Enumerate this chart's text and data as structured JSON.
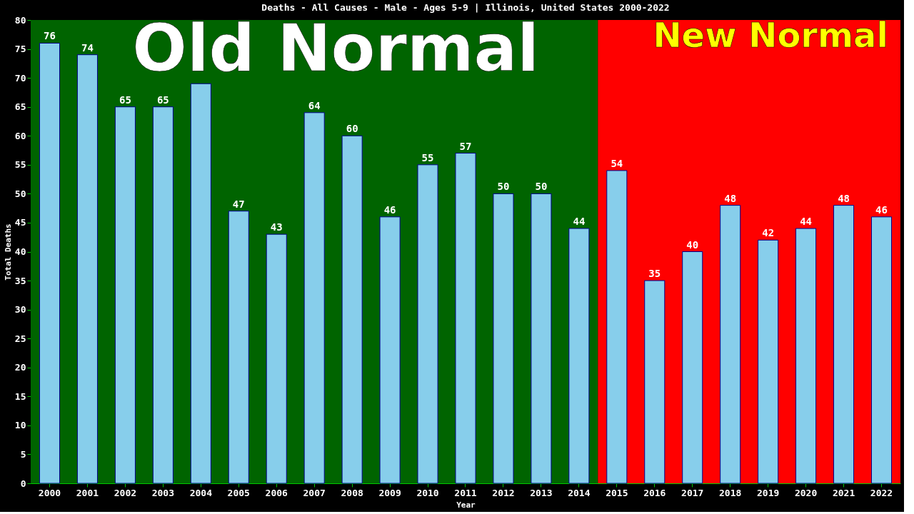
{
  "chart_data": {
    "type": "bar",
    "title": "Deaths - All Causes - Male - Ages 5-9 | Illinois, United States 2000-2022",
    "xlabel": "Year",
    "ylabel": "Total Deaths",
    "categories": [
      "2000",
      "2001",
      "2002",
      "2003",
      "2004",
      "2005",
      "2006",
      "2007",
      "2008",
      "2009",
      "2010",
      "2011",
      "2012",
      "2013",
      "2014",
      "2015",
      "2016",
      "2017",
      "2018",
      "2019",
      "2020",
      "2021",
      "2022"
    ],
    "values": [
      76,
      74,
      65,
      65,
      69,
      47,
      43,
      64,
      60,
      46,
      55,
      57,
      50,
      50,
      44,
      54,
      35,
      40,
      48,
      42,
      44,
      48,
      46
    ],
    "value_labels": [
      "76",
      "74",
      "65",
      "65",
      null,
      "47",
      "43",
      "64",
      "60",
      "46",
      "55",
      "57",
      "50",
      "50",
      "44",
      "54",
      "35",
      "40",
      "48",
      "42",
      "44",
      "48",
      "46"
    ],
    "color": "#87ceeb",
    "ylim": [
      0,
      80
    ],
    "yticks": [
      0,
      5,
      10,
      15,
      20,
      25,
      30,
      35,
      40,
      45,
      50,
      55,
      60,
      65,
      70,
      75,
      80
    ],
    "bands": [
      {
        "axis": "x",
        "from": "2000",
        "to": "2014",
        "label": "Old Normal",
        "color": "#006400"
      },
      {
        "axis": "x",
        "from": "2015",
        "to": "2022",
        "label": "New Normal",
        "color": "#ff0000"
      }
    ],
    "grid": false,
    "legend": false
  }
}
